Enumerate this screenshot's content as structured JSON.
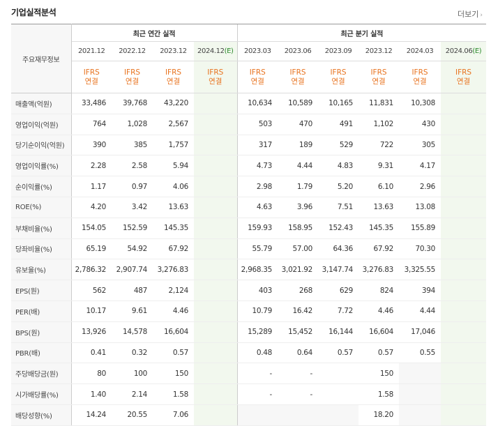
{
  "header": {
    "title": "기업실적분석",
    "more_label": "더보기"
  },
  "table": {
    "row_header_label": "주요재무정보",
    "group_annual": "최근 연간 실적",
    "group_quarter": "최근 분기 실적",
    "annual_periods": [
      {
        "label": "2021.12",
        "est": ""
      },
      {
        "label": "2022.12",
        "est": ""
      },
      {
        "label": "2023.12",
        "est": ""
      },
      {
        "label": "2024.12",
        "est": "(E)"
      }
    ],
    "quarter_periods": [
      {
        "label": "2023.03",
        "est": ""
      },
      {
        "label": "2023.06",
        "est": ""
      },
      {
        "label": "2023.09",
        "est": ""
      },
      {
        "label": "2023.12",
        "est": ""
      },
      {
        "label": "2024.03",
        "est": ""
      },
      {
        "label": "2024.06",
        "est": "(E)"
      }
    ],
    "accounting_top": "IFRS",
    "accounting_bottom": "연결",
    "rows": [
      {
        "label": "매출액(억원)",
        "values": [
          "33,486",
          "39,768",
          "43,220",
          "",
          "10,634",
          "10,589",
          "10,165",
          "11,831",
          "10,308",
          ""
        ]
      },
      {
        "label": "영업이익(억원)",
        "values": [
          "764",
          "1,028",
          "2,567",
          "",
          "503",
          "470",
          "491",
          "1,102",
          "430",
          ""
        ]
      },
      {
        "label": "당기순이익(억원)",
        "values": [
          "390",
          "385",
          "1,757",
          "",
          "317",
          "189",
          "529",
          "722",
          "305",
          ""
        ]
      },
      {
        "label": "영업이익률(%)",
        "values": [
          "2.28",
          "2.58",
          "5.94",
          "",
          "4.73",
          "4.44",
          "4.83",
          "9.31",
          "4.17",
          ""
        ]
      },
      {
        "label": "순이익률(%)",
        "values": [
          "1.17",
          "0.97",
          "4.06",
          "",
          "2.98",
          "1.79",
          "5.20",
          "6.10",
          "2.96",
          ""
        ]
      },
      {
        "label": "ROE(%)",
        "values": [
          "4.20",
          "3.42",
          "13.63",
          "",
          "4.63",
          "3.96",
          "7.51",
          "13.63",
          "13.08",
          ""
        ]
      },
      {
        "label": "부채비율(%)",
        "values": [
          "154.05",
          "152.59",
          "145.35",
          "",
          "159.93",
          "158.95",
          "152.43",
          "145.35",
          "155.89",
          ""
        ]
      },
      {
        "label": "당좌비율(%)",
        "values": [
          "65.19",
          "54.92",
          "67.92",
          "",
          "55.79",
          "57.00",
          "64.36",
          "67.92",
          "70.30",
          ""
        ]
      },
      {
        "label": "유보율(%)",
        "values": [
          "2,786.32",
          "2,907.74",
          "3,276.83",
          "",
          "2,968.35",
          "3,021.92",
          "3,147.74",
          "3,276.83",
          "3,325.55",
          ""
        ]
      },
      {
        "label": "EPS(원)",
        "values": [
          "562",
          "487",
          "2,124",
          "",
          "403",
          "268",
          "629",
          "824",
          "394",
          ""
        ]
      },
      {
        "label": "PER(배)",
        "values": [
          "10.17",
          "9.61",
          "4.46",
          "",
          "10.79",
          "16.42",
          "7.72",
          "4.46",
          "4.44",
          ""
        ]
      },
      {
        "label": "BPS(원)",
        "values": [
          "13,926",
          "14,578",
          "16,604",
          "",
          "15,289",
          "15,452",
          "16,144",
          "16,604",
          "17,046",
          ""
        ]
      },
      {
        "label": "PBR(배)",
        "values": [
          "0.41",
          "0.32",
          "0.57",
          "",
          "0.48",
          "0.64",
          "0.57",
          "0.57",
          "0.55",
          ""
        ]
      },
      {
        "label": "주당배당금(원)",
        "values": [
          "80",
          "100",
          "150",
          "",
          "-",
          "-",
          "",
          "150",
          "",
          ""
        ]
      },
      {
        "label": "시가배당률(%)",
        "values": [
          "1.40",
          "2.14",
          "1.58",
          "",
          "-",
          "-",
          "",
          "1.58",
          "",
          ""
        ]
      },
      {
        "label": "배당성향(%)",
        "values": [
          "14.24",
          "20.55",
          "7.06",
          "",
          "",
          "",
          "",
          "18.20",
          "",
          ""
        ]
      }
    ],
    "gray_cells": [
      [
        13,
        8
      ],
      [
        14,
        8
      ],
      [
        15,
        4
      ],
      [
        15,
        5
      ],
      [
        15,
        6
      ],
      [
        15,
        8
      ]
    ]
  }
}
